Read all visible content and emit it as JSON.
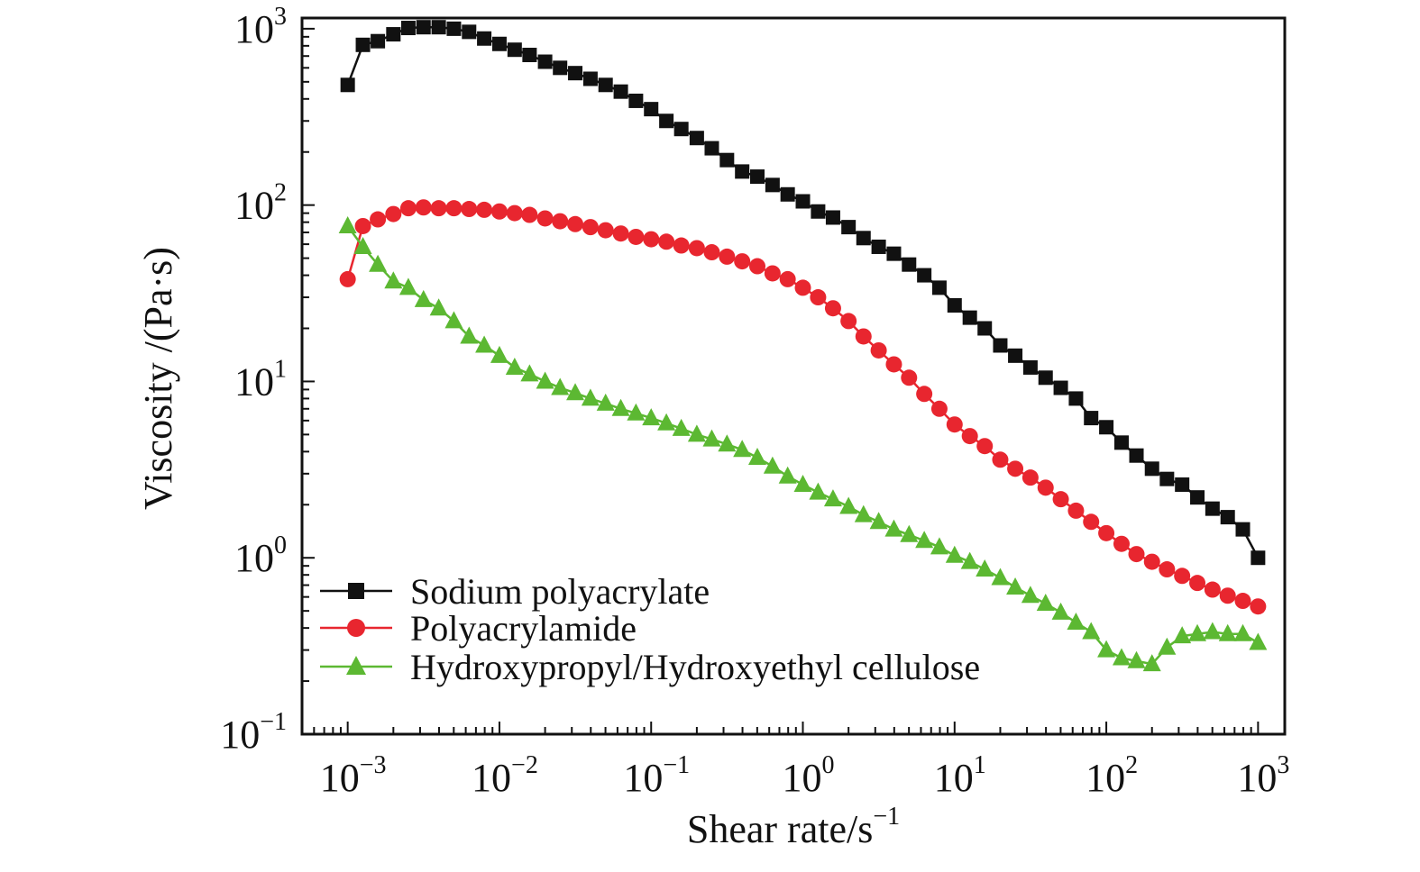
{
  "chart_data": {
    "type": "scatter",
    "xlabel": "Shear rate/s",
    "xlabel_sup": "−1",
    "ylabel": "Viscosity /(Pa·s)",
    "xscale": "log",
    "yscale": "log",
    "xlim": [
      0.0005,
      1500
    ],
    "ylim": [
      0.1,
      1150
    ],
    "grid": false,
    "legend_position": "bottom-left",
    "x_ticks": [
      {
        "base": "10",
        "exp": "−3",
        "value": 0.001
      },
      {
        "base": "10",
        "exp": "−2",
        "value": 0.01
      },
      {
        "base": "10",
        "exp": "−1",
        "value": 0.1
      },
      {
        "base": "10",
        "exp": "0",
        "value": 1
      },
      {
        "base": "10",
        "exp": "1",
        "value": 10
      },
      {
        "base": "10",
        "exp": "2",
        "value": 100
      },
      {
        "base": "10",
        "exp": "3",
        "value": 1000
      }
    ],
    "y_ticks": [
      {
        "base": "10",
        "exp": "−1",
        "value": 0.1
      },
      {
        "base": "10",
        "exp": "0",
        "value": 1
      },
      {
        "base": "10",
        "exp": "1",
        "value": 10
      },
      {
        "base": "10",
        "exp": "2",
        "value": 100
      },
      {
        "base": "10",
        "exp": "3",
        "value": 1000
      }
    ],
    "series": [
      {
        "name": "Sodium polyacrylate",
        "color": "#111111",
        "marker": "square",
        "x": [
          0.001,
          0.00126,
          0.00158,
          0.002,
          0.00251,
          0.00316,
          0.00398,
          0.00501,
          0.00631,
          0.00794,
          0.01,
          0.0126,
          0.0158,
          0.02,
          0.0251,
          0.0316,
          0.0398,
          0.0501,
          0.0631,
          0.0794,
          0.1,
          0.126,
          0.158,
          0.2,
          0.251,
          0.316,
          0.398,
          0.501,
          0.631,
          0.794,
          1,
          1.26,
          1.58,
          2,
          2.51,
          3.16,
          3.98,
          5.01,
          6.31,
          7.94,
          10,
          12.6,
          15.8,
          20,
          25.1,
          31.6,
          39.8,
          50.1,
          63.1,
          79.4,
          100,
          126,
          158,
          200,
          251,
          316,
          398,
          501,
          631,
          794,
          1000
        ],
        "y": [
          480,
          810,
          850,
          930,
          1010,
          1020,
          1020,
          1000,
          960,
          880,
          820,
          760,
          710,
          650,
          600,
          560,
          520,
          480,
          440,
          390,
          350,
          300,
          270,
          240,
          210,
          180,
          155,
          145,
          130,
          115,
          105,
          92,
          85,
          75,
          65,
          58,
          53,
          46,
          40,
          34,
          27,
          23,
          20,
          16,
          14,
          12,
          10.5,
          9.2,
          8.0,
          6.2,
          5.5,
          4.5,
          3.8,
          3.2,
          2.8,
          2.6,
          2.2,
          1.9,
          1.7,
          1.45,
          1.0
        ]
      },
      {
        "name": "Polyacrylamide",
        "color": "#e8262f",
        "marker": "circle",
        "x": [
          0.001,
          0.00126,
          0.00158,
          0.002,
          0.00251,
          0.00316,
          0.00398,
          0.00501,
          0.00631,
          0.00794,
          0.01,
          0.0126,
          0.0158,
          0.02,
          0.0251,
          0.0316,
          0.0398,
          0.0501,
          0.0631,
          0.0794,
          0.1,
          0.126,
          0.158,
          0.2,
          0.251,
          0.316,
          0.398,
          0.501,
          0.631,
          0.794,
          1,
          1.26,
          1.58,
          2,
          2.51,
          3.16,
          3.98,
          5.01,
          6.31,
          7.94,
          10,
          12.6,
          15.8,
          20,
          25.1,
          31.6,
          39.8,
          50.1,
          63.1,
          79.4,
          100,
          126,
          158,
          200,
          251,
          316,
          398,
          501,
          631,
          794,
          1000
        ],
        "y": [
          38,
          76,
          83,
          89,
          96,
          97,
          96,
          96,
          95,
          94,
          92,
          90,
          88,
          84,
          81,
          78,
          75,
          72,
          69,
          66,
          64,
          62,
          59,
          57,
          54,
          51,
          48,
          45,
          41,
          38,
          34,
          30,
          26,
          22,
          18,
          15,
          12.5,
          10.5,
          8.5,
          7.0,
          5.7,
          4.9,
          4.3,
          3.6,
          3.2,
          2.85,
          2.5,
          2.15,
          1.85,
          1.6,
          1.38,
          1.2,
          1.05,
          0.95,
          0.86,
          0.79,
          0.72,
          0.66,
          0.61,
          0.57,
          0.53
        ]
      },
      {
        "name": "Hydroxypropyl/Hydroxyethyl cellulose",
        "color": "#5cb832",
        "marker": "triangle",
        "x": [
          0.001,
          0.00126,
          0.00158,
          0.002,
          0.00251,
          0.00316,
          0.00398,
          0.00501,
          0.00631,
          0.00794,
          0.01,
          0.0126,
          0.0158,
          0.02,
          0.0251,
          0.0316,
          0.0398,
          0.0501,
          0.0631,
          0.0794,
          0.1,
          0.126,
          0.158,
          0.2,
          0.251,
          0.316,
          0.398,
          0.501,
          0.631,
          0.794,
          1,
          1.26,
          1.58,
          2,
          2.51,
          3.16,
          3.98,
          5.01,
          6.31,
          7.94,
          10,
          12.6,
          15.8,
          20,
          25.1,
          31.6,
          39.8,
          50.1,
          63.1,
          79.4,
          100,
          126,
          158,
          200,
          251,
          316,
          398,
          501,
          631,
          794,
          1000
        ],
        "y": [
          76,
          58,
          46,
          37,
          34,
          29,
          26,
          22,
          18,
          16,
          14,
          12,
          11,
          10,
          9.2,
          8.6,
          8.0,
          7.5,
          7.0,
          6.6,
          6.2,
          5.8,
          5.4,
          5.0,
          4.7,
          4.4,
          4.1,
          3.7,
          3.3,
          2.9,
          2.6,
          2.35,
          2.15,
          1.95,
          1.75,
          1.6,
          1.45,
          1.35,
          1.25,
          1.15,
          1.03,
          0.95,
          0.86,
          0.77,
          0.68,
          0.61,
          0.55,
          0.49,
          0.43,
          0.38,
          0.3,
          0.27,
          0.26,
          0.25,
          0.31,
          0.36,
          0.37,
          0.38,
          0.37,
          0.37,
          0.33
        ]
      }
    ]
  }
}
